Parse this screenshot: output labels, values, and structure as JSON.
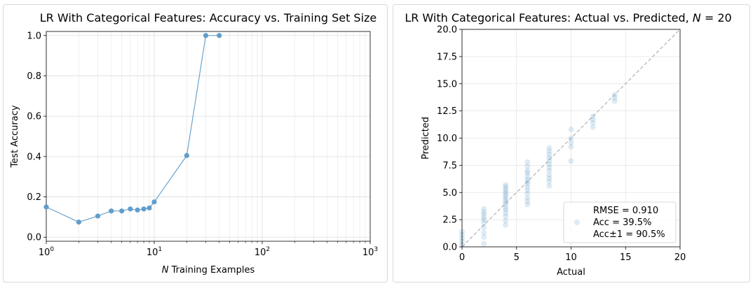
{
  "chart_data": [
    {
      "type": "line",
      "title": "LR With Categorical Features: Accuracy vs. Training Set Size",
      "xlabel_italic": "N",
      "xlabel_rest": " Training Examples",
      "ylabel": "Test Accuracy",
      "xscale": "log",
      "xlim": [
        1,
        1000
      ],
      "ylim": [
        -0.02,
        1.02
      ],
      "x_ticks": [
        {
          "v": 1,
          "base": "10",
          "exp": "0"
        },
        {
          "v": 10,
          "base": "10",
          "exp": "1"
        },
        {
          "v": 100,
          "base": "10",
          "exp": "2"
        },
        {
          "v": 1000,
          "base": "10",
          "exp": "3"
        }
      ],
      "y_ticks": [
        {
          "v": 0.0,
          "label": "0.0"
        },
        {
          "v": 0.2,
          "label": "0.2"
        },
        {
          "v": 0.4,
          "label": "0.4"
        },
        {
          "v": 0.6,
          "label": "0.6"
        },
        {
          "v": 0.8,
          "label": "0.8"
        },
        {
          "v": 1.0,
          "label": "1.0"
        }
      ],
      "grid": true,
      "color": "#5b9ac9",
      "x": [
        1,
        2,
        3,
        4,
        5,
        6,
        7,
        8,
        9,
        10,
        20,
        30,
        40
      ],
      "y": [
        0.15,
        0.075,
        0.105,
        0.13,
        0.13,
        0.14,
        0.135,
        0.14,
        0.145,
        0.175,
        0.405,
        1.0,
        1.0
      ]
    },
    {
      "type": "scatter",
      "title_prefix": "LR With Categorical Features: Actual vs. Predicted, ",
      "title_var": "N",
      "title_suffix": " = 20",
      "xlabel": "Actual",
      "ylabel": "Predicted",
      "xlim": [
        0,
        20
      ],
      "ylim": [
        0,
        20
      ],
      "x_ticks": [
        {
          "v": 0,
          "label": "0"
        },
        {
          "v": 5,
          "label": "5"
        },
        {
          "v": 10,
          "label": "10"
        },
        {
          "v": 15,
          "label": "15"
        },
        {
          "v": 20,
          "label": "20"
        }
      ],
      "y_ticks": [
        {
          "v": 0.0,
          "label": "0.0"
        },
        {
          "v": 2.5,
          "label": "2.5"
        },
        {
          "v": 5.0,
          "label": "5.0"
        },
        {
          "v": 7.5,
          "label": "7.5"
        },
        {
          "v": 10.0,
          "label": "10.0"
        },
        {
          "v": 12.5,
          "label": "12.5"
        },
        {
          "v": 15.0,
          "label": "15.0"
        },
        {
          "v": 17.5,
          "label": "17.5"
        },
        {
          "v": 20.0,
          "label": "20.0"
        }
      ],
      "grid": true,
      "color": "#5b9ac9",
      "reference_line": {
        "from": [
          0,
          0
        ],
        "to": [
          20,
          20
        ],
        "style": "dashed",
        "color": "#aaaaaa"
      },
      "legend_position": "lower-right",
      "legend_lines": [
        "RMSE = 0.910",
        "Acc = 39.5%",
        "Acc±1 = 90.5%"
      ],
      "points": [
        [
          0,
          0.2
        ],
        [
          0,
          0.5
        ],
        [
          0,
          0.8
        ],
        [
          0,
          1.1
        ],
        [
          0,
          1.4
        ],
        [
          2,
          0.3
        ],
        [
          2,
          0.9
        ],
        [
          2,
          1.3
        ],
        [
          2,
          1.8
        ],
        [
          2,
          2.2
        ],
        [
          2,
          2.5
        ],
        [
          2,
          2.7
        ],
        [
          2,
          3.0
        ],
        [
          2,
          3.2
        ],
        [
          2,
          3.5
        ],
        [
          4,
          2.0
        ],
        [
          4,
          2.4
        ],
        [
          4,
          2.8
        ],
        [
          4,
          3.1
        ],
        [
          4,
          3.4
        ],
        [
          4,
          3.6
        ],
        [
          4,
          3.9
        ],
        [
          4,
          4.1
        ],
        [
          4,
          4.3
        ],
        [
          4,
          4.5
        ],
        [
          4,
          4.7
        ],
        [
          4,
          4.9
        ],
        [
          4,
          5.1
        ],
        [
          4,
          5.3
        ],
        [
          4,
          5.5
        ],
        [
          4,
          5.7
        ],
        [
          6,
          3.9
        ],
        [
          6,
          4.2
        ],
        [
          6,
          4.5
        ],
        [
          6,
          4.9
        ],
        [
          6,
          5.2
        ],
        [
          6,
          5.5
        ],
        [
          6,
          5.8
        ],
        [
          6,
          6.0
        ],
        [
          6,
          6.2
        ],
        [
          6,
          6.5
        ],
        [
          6,
          6.8
        ],
        [
          6,
          7.0
        ],
        [
          6,
          7.4
        ],
        [
          6,
          7.8
        ],
        [
          8,
          5.6
        ],
        [
          8,
          6.0
        ],
        [
          8,
          6.3
        ],
        [
          8,
          6.6
        ],
        [
          8,
          7.0
        ],
        [
          8,
          7.3
        ],
        [
          8,
          7.6
        ],
        [
          8,
          7.9
        ],
        [
          8,
          8.2
        ],
        [
          8,
          8.5
        ],
        [
          8,
          8.8
        ],
        [
          8,
          9.1
        ],
        [
          10,
          7.9
        ],
        [
          10,
          9.2
        ],
        [
          10,
          9.6
        ],
        [
          10,
          10.0
        ],
        [
          10,
          10.8
        ],
        [
          12,
          11.0
        ],
        [
          12,
          11.4
        ],
        [
          12,
          11.7
        ],
        [
          12,
          12.0
        ],
        [
          14,
          13.4
        ],
        [
          14,
          13.7
        ],
        [
          14,
          14.0
        ]
      ]
    }
  ]
}
